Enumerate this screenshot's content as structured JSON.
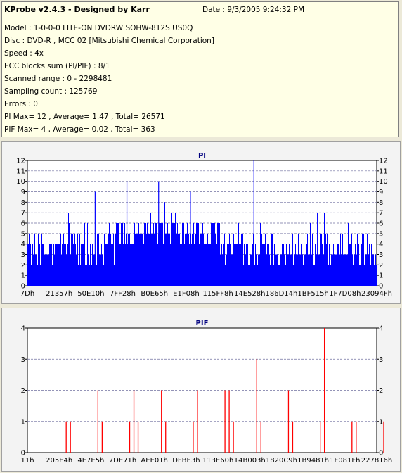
{
  "info": {
    "title": "KProbe v2.4.3 - Designed by Karr",
    "date": "Date : 9/3/2005 9:24:32 PM",
    "lines": [
      "Model : 1-0-0-0 LITE-ON DVDRW SOHW-812S  US0Q",
      "Disc : DVD-R , MCC 02 [Mitsubishi Chemical Corporation]",
      "Speed : 4x",
      "ECC blocks sum (PI/PIF) : 8/1",
      "Scanned range : 0 - 2298481",
      "Sampling count : 125769",
      "Errors : 0",
      "PI Max= 12 , Average= 1.47 , Total= 26571",
      "PIF Max= 4 , Average= 0.02 , Total= 363"
    ]
  },
  "chart_data": [
    {
      "type": "bar",
      "title": "PI",
      "ylim": [
        0,
        12
      ],
      "yticks": [
        "0",
        "1",
        "2",
        "3",
        "4",
        "5",
        "6",
        "7",
        "8",
        "9",
        "10",
        "11",
        "12"
      ],
      "xticks": [
        "7Dh",
        "21357h",
        "50E10h",
        "7FF28h",
        "B0E65h",
        "E1F08h",
        "115FF8h",
        "14E528h",
        "186D14h",
        "1BF515h",
        "1F7D08h",
        "23094Fh"
      ],
      "color": "#0000ff",
      "grid": true,
      "max": 12,
      "max_position_label": "14E528h",
      "notable_peaks": [
        {
          "near": "50E10h",
          "value": 9
        },
        {
          "near": "7FF28h",
          "value": 10
        },
        {
          "near": "B0E65h",
          "value": 10
        },
        {
          "near": "E1F08h",
          "value": 9
        },
        {
          "near": "14E528h",
          "value": 12
        },
        {
          "near": "1BF515h",
          "value": 7
        }
      ]
    },
    {
      "type": "bar",
      "title": "PIF",
      "ylim": [
        0,
        4
      ],
      "yticks": [
        "0",
        "1",
        "2",
        "3",
        "4"
      ],
      "xticks": [
        "11h",
        "205E4h",
        "4E7E5h",
        "7DE71h",
        "AEE01h",
        "DFBE3h",
        "113E60h",
        "14B003h",
        "1820C9h",
        "1B9481h",
        "1F081Fh",
        "227816h"
      ],
      "color": "#ff0000",
      "grid": true,
      "events": [
        {
          "near": "205E4h",
          "value": 1
        },
        {
          "near": "205E4h",
          "value": 1
        },
        {
          "near": "4E7E5h",
          "value": 2
        },
        {
          "near": "4E7E5h",
          "value": 1
        },
        {
          "near": "7DE71h",
          "value": 1
        },
        {
          "near": "7DE71h",
          "value": 2
        },
        {
          "near": "7DE71h",
          "value": 1
        },
        {
          "near": "AEE01h",
          "value": 2
        },
        {
          "near": "AEE01h",
          "value": 1
        },
        {
          "near": "DFBE3h",
          "value": 1
        },
        {
          "near": "DFBE3h",
          "value": 2
        },
        {
          "near": "113E60h",
          "value": 2
        },
        {
          "near": "113E60h",
          "value": 2
        },
        {
          "near": "113E60h",
          "value": 1
        },
        {
          "near": "14B003h",
          "value": 3
        },
        {
          "near": "14B003h",
          "value": 1
        },
        {
          "near": "1820C9h",
          "value": 2
        },
        {
          "near": "1820C9h",
          "value": 1
        },
        {
          "near": "1B9481h",
          "value": 1
        },
        {
          "near": "1B9481h",
          "value": 4
        },
        {
          "near": "1F081Fh",
          "value": 1
        },
        {
          "near": "1F081Fh",
          "value": 1
        },
        {
          "near": "227816h",
          "value": 1
        }
      ],
      "max": 4
    }
  ]
}
